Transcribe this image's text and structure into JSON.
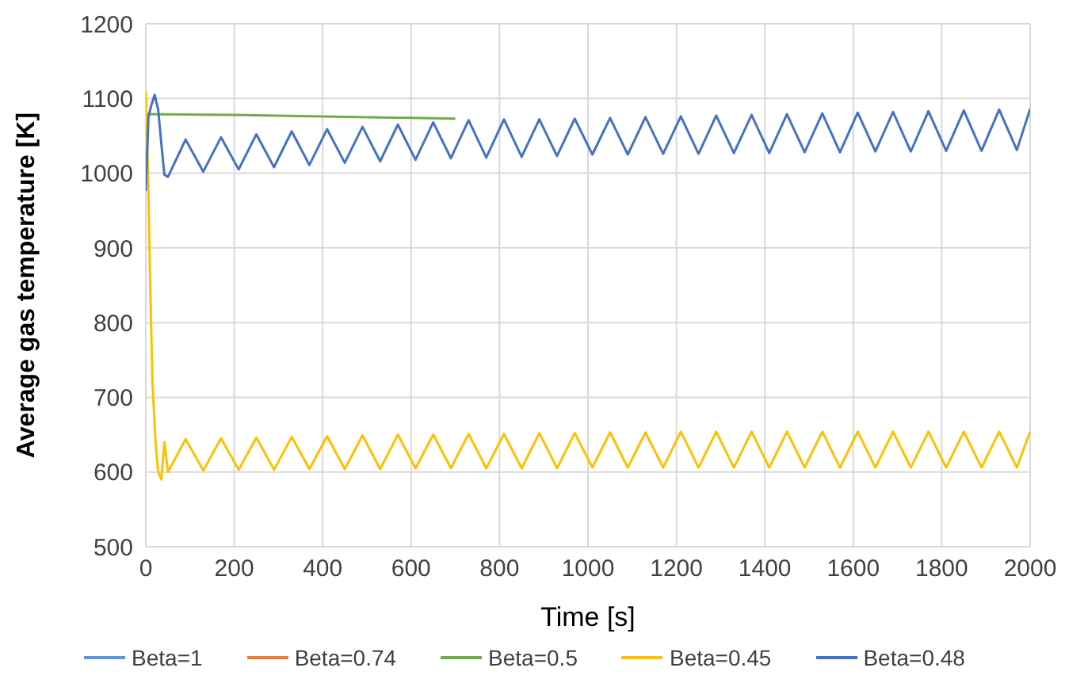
{
  "chart_data": {
    "type": "line",
    "xlabel": "Time [s]",
    "ylabel": "Average gas temperature [K]",
    "xlim": [
      0,
      2000
    ],
    "xticks": [
      0,
      200,
      400,
      600,
      800,
      1000,
      1200,
      1400,
      1600,
      1800,
      2000
    ],
    "ylim": [
      500,
      1200
    ],
    "yticks": [
      500,
      600,
      700,
      800,
      900,
      1000,
      1100,
      1200
    ],
    "grid": true,
    "legend": "bottom",
    "marker": "none",
    "line_style": "solid",
    "series": [
      {
        "name": "Beta=1",
        "color": "#5b9bd5"
      },
      {
        "name": "Beta=0.74",
        "color": "#ed7d31"
      },
      {
        "name": "Beta=0.5",
        "color": "#70ad47",
        "x": [
          0,
          200,
          400,
          600,
          700
        ],
        "values": [
          1079,
          1078,
          1076,
          1074,
          1073
        ]
      },
      {
        "name": "Beta=0.45",
        "color": "#ffc000",
        "x": [
          0,
          5,
          10,
          15,
          22,
          28,
          35,
          42,
          50,
          90,
          130,
          170,
          210,
          250,
          290,
          330,
          370,
          410,
          450,
          490,
          530,
          570,
          610,
          650,
          690,
          730,
          770,
          810,
          850,
          890,
          930,
          970,
          1010,
          1050,
          1090,
          1130,
          1170,
          1210,
          1250,
          1290,
          1330,
          1370,
          1410,
          1450,
          1490,
          1530,
          1570,
          1610,
          1650,
          1690,
          1730,
          1770,
          1810,
          1850,
          1890,
          1930,
          1970,
          2000
        ],
        "values": [
          1110,
          1000,
          850,
          720,
          640,
          600,
          590,
          640,
          600,
          644,
          602,
          645,
          603,
          646,
          603,
          647,
          604,
          648,
          604,
          649,
          604,
          650,
          605,
          650,
          605,
          651,
          605,
          651,
          605,
          652,
          605,
          652,
          606,
          653,
          606,
          653,
          606,
          654,
          606,
          654,
          606,
          654,
          606,
          654,
          606,
          654,
          606,
          654,
          606,
          654,
          606,
          654,
          606,
          654,
          606,
          654,
          606,
          654
        ]
      },
      {
        "name": "Beta=0.48",
        "color": "#4472c4",
        "x": [
          0,
          6,
          12,
          20,
          28,
          35,
          42,
          50,
          90,
          130,
          170,
          210,
          250,
          290,
          330,
          370,
          410,
          450,
          490,
          530,
          570,
          610,
          650,
          690,
          730,
          770,
          810,
          850,
          890,
          930,
          970,
          1010,
          1050,
          1090,
          1130,
          1170,
          1210,
          1250,
          1290,
          1330,
          1370,
          1410,
          1450,
          1490,
          1530,
          1570,
          1610,
          1650,
          1690,
          1730,
          1770,
          1810,
          1850,
          1890,
          1930,
          1970,
          2000
        ],
        "values": [
          976,
          1075,
          1090,
          1105,
          1085,
          1040,
          998,
          995,
          1045,
          1002,
          1048,
          1005,
          1052,
          1008,
          1056,
          1011,
          1059,
          1014,
          1062,
          1016,
          1065,
          1018,
          1068,
          1020,
          1071,
          1021,
          1072,
          1022,
          1072,
          1023,
          1073,
          1025,
          1074,
          1025,
          1075,
          1026,
          1076,
          1026,
          1077,
          1027,
          1078,
          1027,
          1079,
          1028,
          1080,
          1028,
          1081,
          1029,
          1082,
          1029,
          1083,
          1030,
          1084,
          1030,
          1085,
          1031,
          1086
        ]
      }
    ]
  }
}
